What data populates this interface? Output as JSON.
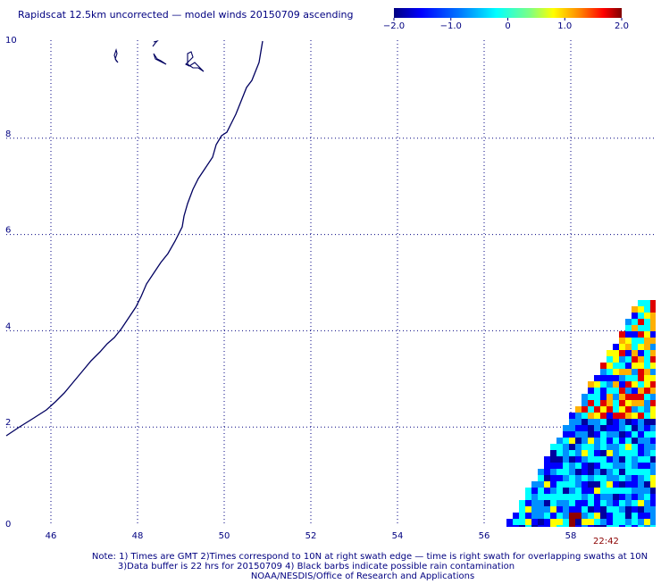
{
  "title": "Rapidscat 12.5km uncorrected — model winds 20150709 ascending",
  "colorbar": {
    "ticks": [
      "−2.0",
      "−1.0",
      "0",
      "1.0",
      "2.0"
    ],
    "range": [
      -2.0,
      2.0
    ]
  },
  "map": {
    "lon_range": [
      45,
      59.6
    ],
    "lat_range": [
      0,
      10
    ],
    "x_ticks": [
      "46",
      "48",
      "50",
      "52",
      "54",
      "56",
      "58"
    ],
    "y_ticks": [
      "0",
      "2",
      "4",
      "6",
      "8",
      "10"
    ],
    "grid_style": "dotted",
    "coastline_color": "#000060",
    "islands_color": "#000060"
  },
  "swath": {
    "time_label": "22:42",
    "colormap": "blue-cyan-yellow-red",
    "description_levels": "difference values"
  },
  "notes": {
    "line1": "Note: 1) Times are GMT 2)Times correspond to 10N at right swath edge — time is right swath for overlapping swaths at 10N",
    "line2": "3)Data buffer is 22 hrs for 20150709 4) Black barbs indicate possible rain contamination",
    "line3": "NOAA/NESDIS/Office of Research and Applications"
  },
  "colors": {
    "text": "#000080",
    "time_label": "#8b0000"
  }
}
